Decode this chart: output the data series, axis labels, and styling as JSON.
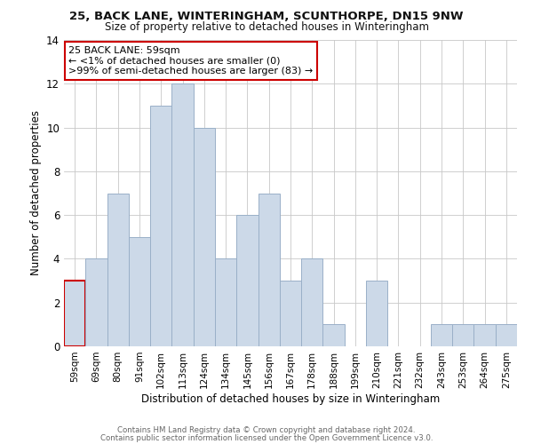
{
  "title": "25, BACK LANE, WINTERINGHAM, SCUNTHORPE, DN15 9NW",
  "subtitle": "Size of property relative to detached houses in Winteringham",
  "bar_labels": [
    "59sqm",
    "69sqm",
    "80sqm",
    "91sqm",
    "102sqm",
    "113sqm",
    "124sqm",
    "134sqm",
    "145sqm",
    "156sqm",
    "167sqm",
    "178sqm",
    "188sqm",
    "199sqm",
    "210sqm",
    "221sqm",
    "232sqm",
    "243sqm",
    "253sqm",
    "264sqm",
    "275sqm"
  ],
  "bar_heights": [
    3,
    4,
    7,
    5,
    11,
    12,
    10,
    4,
    6,
    7,
    3,
    4,
    1,
    0,
    3,
    0,
    0,
    1,
    1,
    1,
    1
  ],
  "bar_color": "#ccd9e8",
  "bar_edge_color": "#9ab0c8",
  "highlight_bar_index": 0,
  "highlight_edge_color": "#cc0000",
  "xlabel": "Distribution of detached houses by size in Winteringham",
  "ylabel": "Number of detached properties",
  "ylim": [
    0,
    14
  ],
  "yticks": [
    0,
    2,
    4,
    6,
    8,
    10,
    12,
    14
  ],
  "grid_color": "#c8c8c8",
  "background_color": "#ffffff",
  "annotation_title": "25 BACK LANE: 59sqm",
  "annotation_line1": "← <1% of detached houses are smaller (0)",
  "annotation_line2": ">99% of semi-detached houses are larger (83) →",
  "annotation_box_color": "#ffffff",
  "annotation_box_edge": "#cc0000",
  "footer_line1": "Contains HM Land Registry data © Crown copyright and database right 2024.",
  "footer_line2": "Contains public sector information licensed under the Open Government Licence v3.0."
}
